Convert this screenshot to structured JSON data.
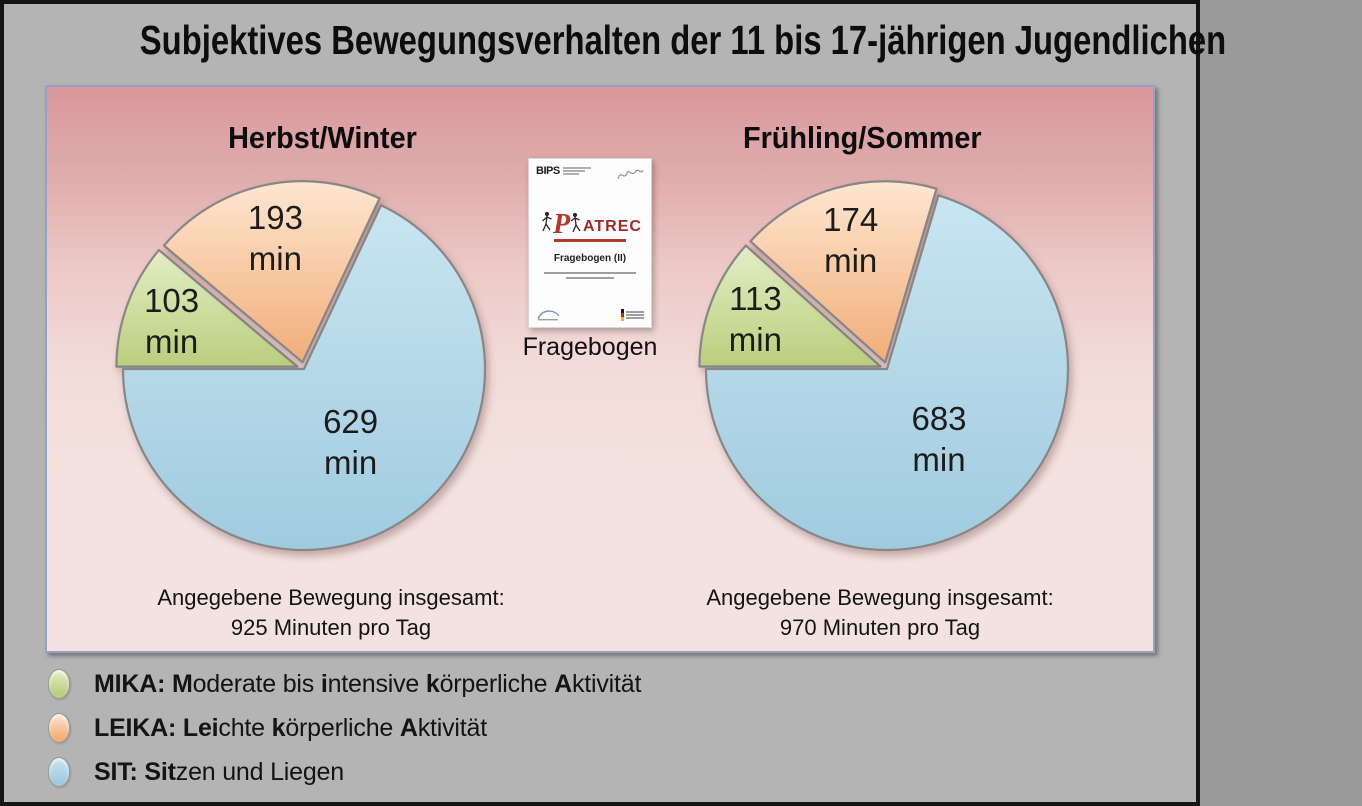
{
  "title": "Subjektives Bewegungsverhalten der 11 bis 17-jährigen Jugendlichen",
  "colors": {
    "mika": {
      "light": "#e3eec6",
      "main": "#b9cf7d"
    },
    "leika": {
      "light": "#fde6d0",
      "main": "#f2ad78"
    },
    "sit": {
      "light": "#c8e5f1",
      "main": "#a0cbdf"
    },
    "slice_stroke": "#878787",
    "panel_border": "#94a2c6",
    "panel_gradient_top": "#d8989d",
    "panel_gradient_bottom": "#f3e2df",
    "background_gray": "#b4b4b4",
    "brand_red": "#b5372c",
    "brand_dark_red": "#9d2b24"
  },
  "charts": [
    {
      "id": "herbst-winter",
      "title": "Herbst/Winter",
      "slices": [
        {
          "key": "mika",
          "value": 103,
          "label": "103",
          "unit": "min"
        },
        {
          "key": "leika",
          "value": 193,
          "label": "193",
          "unit": "min"
        },
        {
          "key": "sit",
          "value": 629,
          "label": "629",
          "unit": "min"
        }
      ],
      "total_caption_line1": "Angegebene Bewegung insgesamt:",
      "total_caption_line2": "925 Minuten pro Tag"
    },
    {
      "id": "fruehling-sommer",
      "title": "Frühling/Sommer",
      "slices": [
        {
          "key": "mika",
          "value": 113,
          "label": "113",
          "unit": "min"
        },
        {
          "key": "leika",
          "value": 174,
          "label": "174",
          "unit": "min"
        },
        {
          "key": "sit",
          "value": 683,
          "label": "683",
          "unit": "min"
        }
      ],
      "total_caption_line1": "Angegebene Bewegung insgesamt:",
      "total_caption_line2": "970 Minuten pro Tag"
    }
  ],
  "chart_data": [
    {
      "type": "pie",
      "title": "Herbst/Winter",
      "labels": [
        "MIKA",
        "LEIKA",
        "SIT"
      ],
      "values": [
        103,
        193,
        629
      ],
      "unit": "min",
      "total": 925,
      "annotation": "Angegebene Bewegung insgesamt: 925 Minuten pro Tag",
      "colors": [
        "#b9cf7d",
        "#f2ad78",
        "#a0cbdf"
      ],
      "legend_position": "bottom-left"
    },
    {
      "type": "pie",
      "title": "Frühling/Sommer",
      "labels": [
        "MIKA",
        "LEIKA",
        "SIT"
      ],
      "values": [
        113,
        174,
        683
      ],
      "unit": "min",
      "total": 970,
      "annotation": "Angegebene Bewegung insgesamt: 970 Minuten pro Tag",
      "colors": [
        "#b9cf7d",
        "#f2ad78",
        "#a0cbdf"
      ],
      "legend_position": "bottom-left"
    }
  ],
  "questionnaire": {
    "caption": "Fragebogen",
    "publisher": "BIPS",
    "brand": "ATREC",
    "brand_letter": "P",
    "doc_title": "Fragebogen (II)"
  },
  "legend": [
    {
      "key": "mika",
      "segments": [
        {
          "t": "MIKA: ",
          "b": true
        },
        {
          "t": "M",
          "b": true
        },
        {
          "t": "oderate bis ",
          "b": false
        },
        {
          "t": "i",
          "b": true
        },
        {
          "t": "ntensive ",
          "b": false
        },
        {
          "t": "k",
          "b": true
        },
        {
          "t": "örperliche ",
          "b": false
        },
        {
          "t": "A",
          "b": true
        },
        {
          "t": "ktivität",
          "b": false
        }
      ]
    },
    {
      "key": "leika",
      "segments": [
        {
          "t": "LEIKA: ",
          "b": true
        },
        {
          "t": "Lei",
          "b": true
        },
        {
          "t": "chte ",
          "b": false
        },
        {
          "t": "k",
          "b": true
        },
        {
          "t": "örperliche ",
          "b": false
        },
        {
          "t": "A",
          "b": true
        },
        {
          "t": "ktivität",
          "b": false
        }
      ]
    },
    {
      "key": "sit",
      "segments": [
        {
          "t": "SIT: ",
          "b": true
        },
        {
          "t": "Sit",
          "b": true
        },
        {
          "t": "zen und Liegen",
          "b": false
        }
      ]
    }
  ]
}
